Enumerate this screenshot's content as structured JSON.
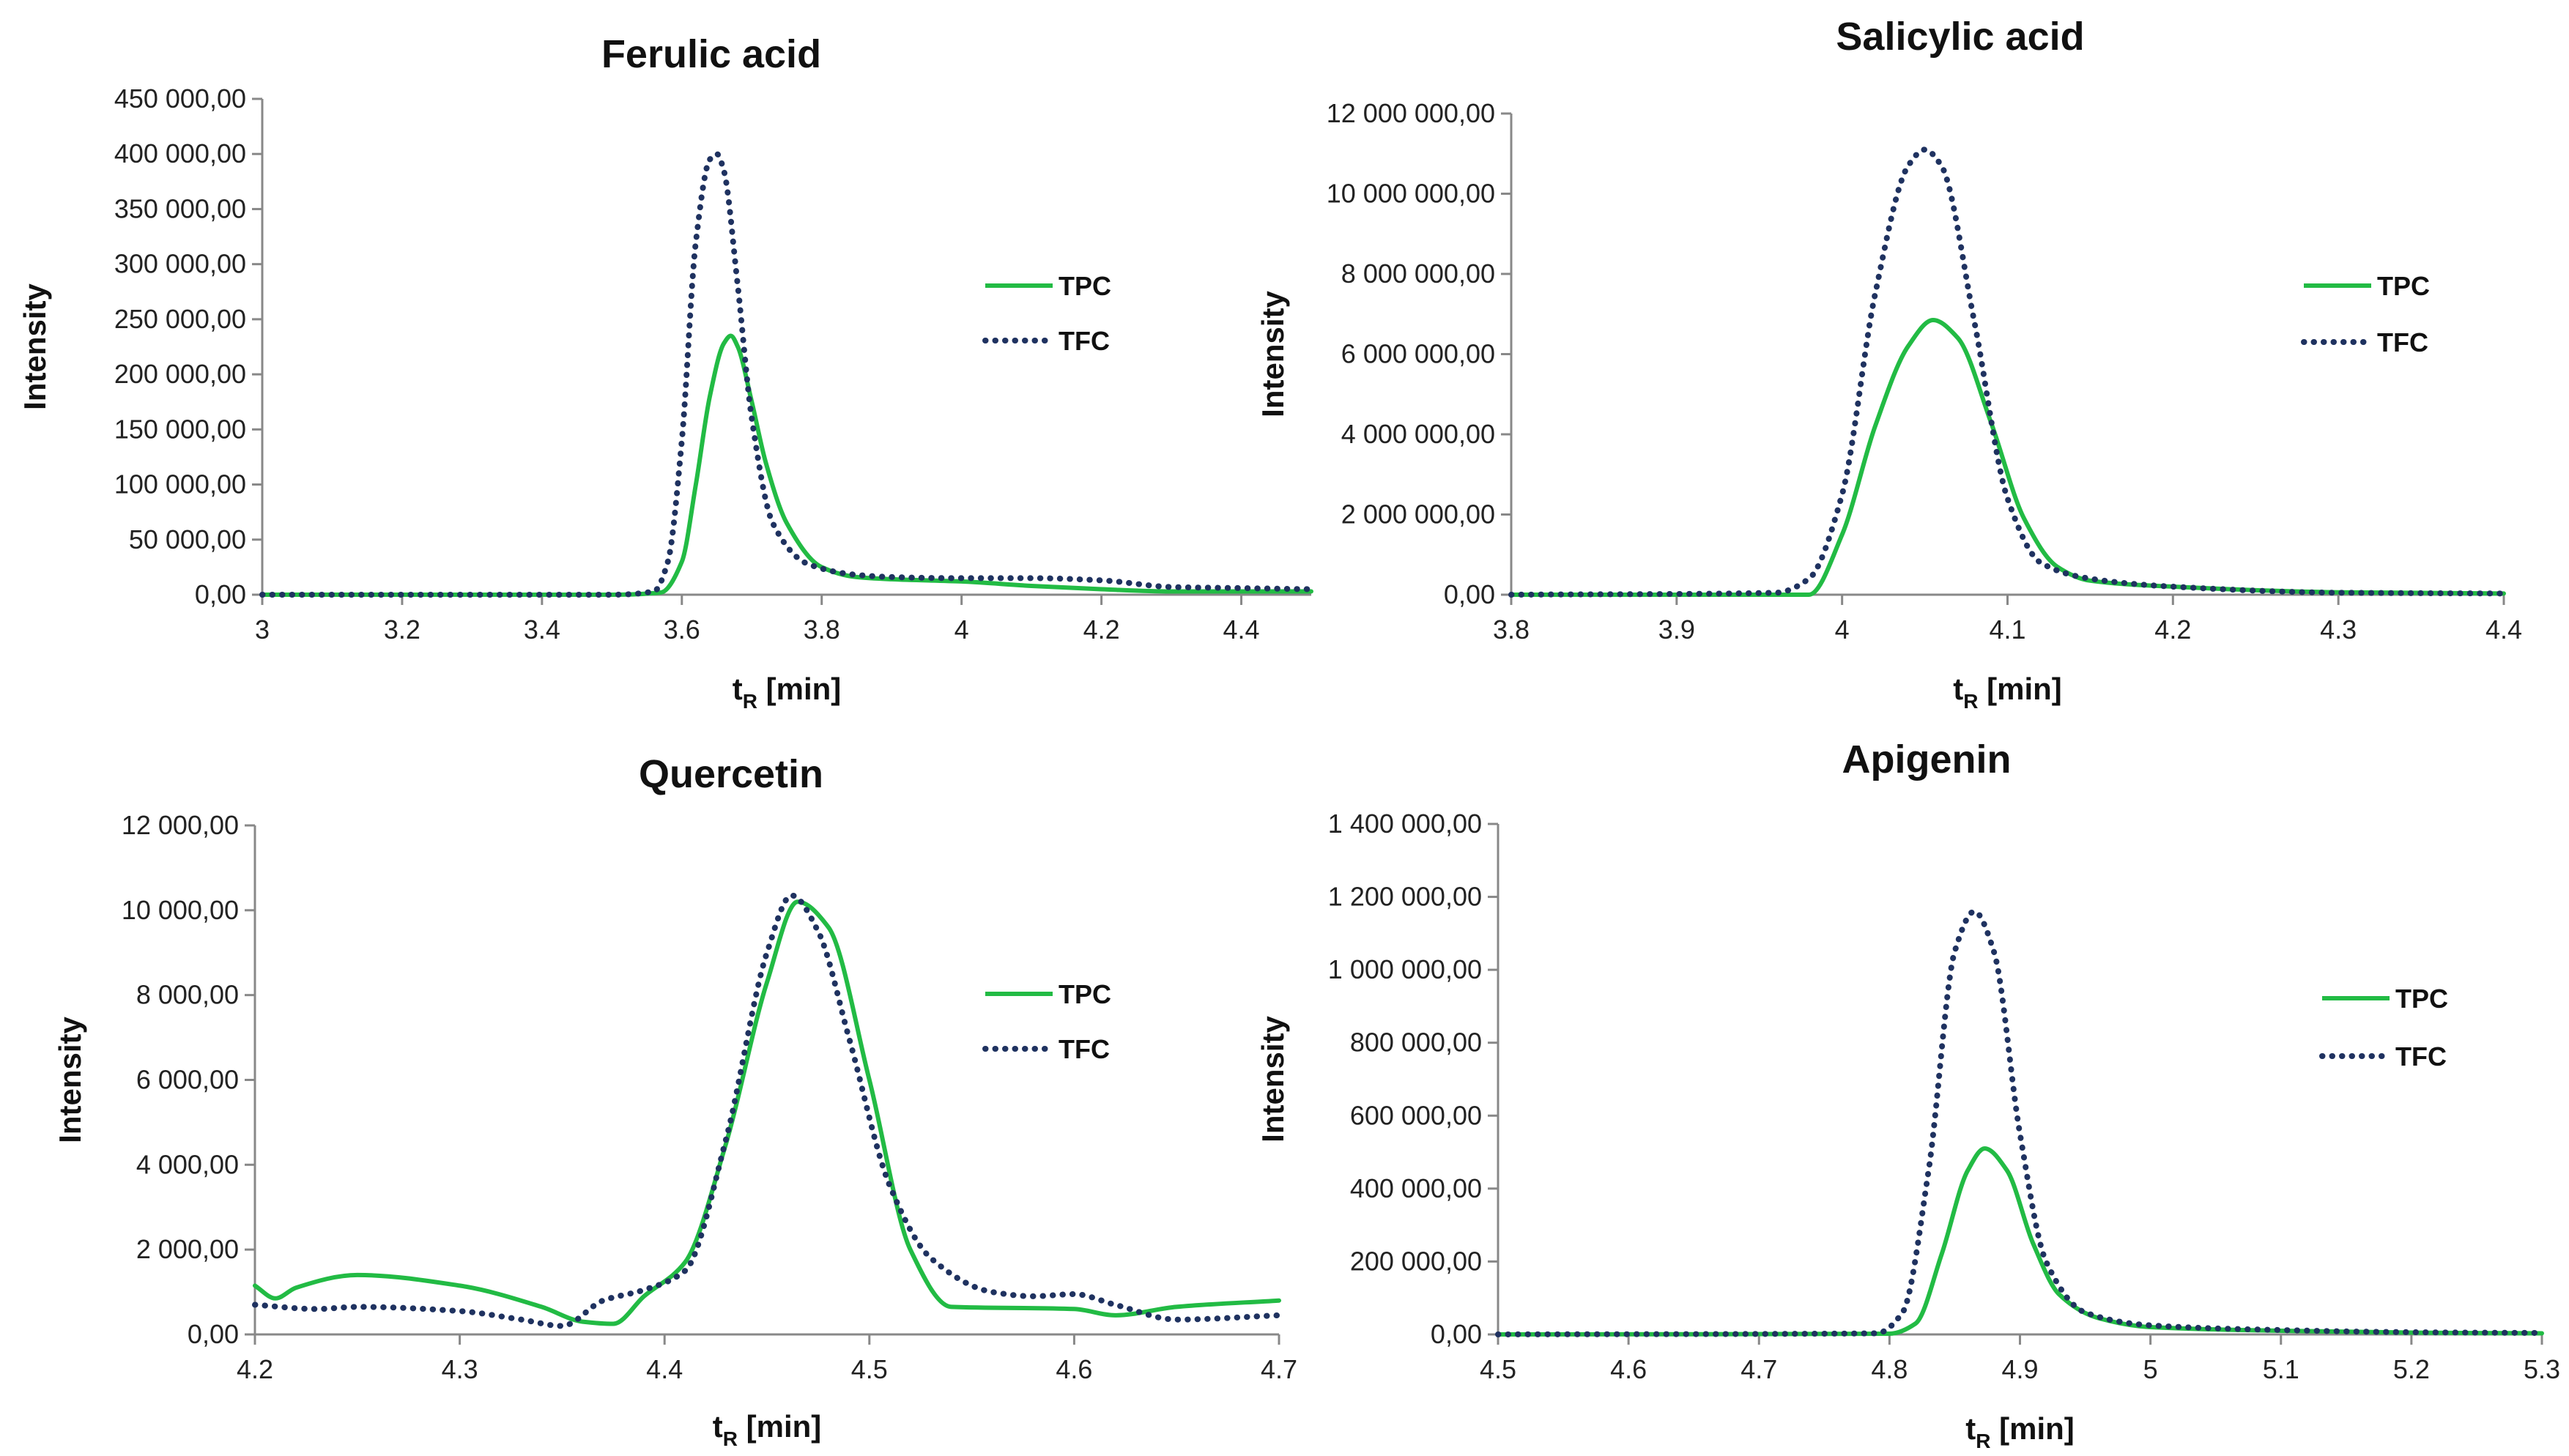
{
  "figure": {
    "description_colors": {
      "tpc": "#22bb44",
      "tfc": "#1f3260"
    }
  },
  "chart_data": [
    {
      "id": "ferulic",
      "type": "line",
      "title": "Ferulic acid",
      "xlabel": "t",
      "xlabel_sub": "R",
      "xlabel_unit": " [min]",
      "ylabel": "Intensity",
      "xlim": [
        3,
        4.5
      ],
      "ylim": [
        0,
        450000
      ],
      "xticks": [
        3,
        3.2,
        3.4,
        3.6,
        3.8,
        4,
        4.2,
        4.4
      ],
      "xtick_labels": [
        "3",
        "3.2",
        "3.4",
        "3.6",
        "3.8",
        "4",
        "4.2",
        "4.4"
      ],
      "yticks": [
        0,
        50000,
        100000,
        150000,
        200000,
        250000,
        300000,
        350000,
        400000,
        450000
      ],
      "ytick_labels": [
        "0,00",
        "50 000,00",
        "100 000,00",
        "150 000,00",
        "200 000,00",
        "250 000,00",
        "300 000,00",
        "350 000,00",
        "400 000,00",
        "450 000,00"
      ],
      "legend": [
        "TPC",
        "TFC"
      ],
      "series": [
        {
          "name": "TPC",
          "color": "#22bb44",
          "style": "solid",
          "x": [
            3.0,
            3.5,
            3.57,
            3.6,
            3.62,
            3.64,
            3.66,
            3.67,
            3.68,
            3.7,
            3.72,
            3.75,
            3.8,
            3.85,
            3.9,
            4.0,
            4.1,
            4.2,
            4.3,
            4.4,
            4.5
          ],
          "y": [
            0,
            0,
            2000,
            30000,
            100000,
            180000,
            228000,
            235000,
            225000,
            175000,
            120000,
            65000,
            25000,
            16000,
            14000,
            12000,
            8000,
            5000,
            3000,
            3000,
            3000
          ]
        },
        {
          "name": "TFC",
          "color": "#1f3260",
          "style": "dotted",
          "x": [
            3.0,
            3.5,
            3.56,
            3.58,
            3.6,
            3.62,
            3.64,
            3.65,
            3.66,
            3.68,
            3.7,
            3.73,
            3.78,
            3.85,
            3.9,
            4.0,
            4.1,
            4.2,
            4.3,
            4.4,
            4.5
          ],
          "y": [
            0,
            0,
            3000,
            30000,
            140000,
            320000,
            395000,
            400000,
            385000,
            280000,
            160000,
            65000,
            28000,
            18000,
            16000,
            15000,
            15000,
            13000,
            7000,
            6000,
            5000
          ]
        }
      ]
    },
    {
      "id": "salicylic",
      "type": "line",
      "title": "Salicylic acid",
      "xlabel": "t",
      "xlabel_sub": "R",
      "xlabel_unit": " [min]",
      "ylabel": "Intensity",
      "xlim": [
        3.8,
        4.4
      ],
      "ylim": [
        0,
        12000000
      ],
      "xticks": [
        3.8,
        3.9,
        4.0,
        4.1,
        4.2,
        4.3,
        4.4
      ],
      "xtick_labels": [
        "3.8",
        "3.9",
        "4",
        "4.1",
        "4.2",
        "4.3",
        "4.4"
      ],
      "yticks": [
        0,
        2000000,
        4000000,
        6000000,
        8000000,
        10000000,
        12000000
      ],
      "ytick_labels": [
        "0,00",
        "2 000 000,00",
        "4 000 000,00",
        "6 000 000,00",
        "8 000 000,00",
        "10 000 000,00",
        "12 000 000,00"
      ],
      "legend": [
        "TPC",
        "TFC"
      ],
      "series": [
        {
          "name": "TPC",
          "color": "#22bb44",
          "style": "solid",
          "x": [
            3.8,
            3.98,
            4.0,
            4.02,
            4.04,
            4.055,
            4.07,
            4.09,
            4.11,
            4.13,
            4.15,
            4.2,
            4.3,
            4.4
          ],
          "y": [
            0,
            0,
            1500000,
            4200000,
            6200000,
            6850000,
            6400000,
            4300000,
            1900000,
            700000,
            350000,
            200000,
            60000,
            30000
          ]
        },
        {
          "name": "TFC",
          "color": "#1f3260",
          "style": "dotted",
          "x": [
            3.8,
            3.96,
            3.98,
            4.0,
            4.02,
            4.04,
            4.05,
            4.06,
            4.08,
            4.1,
            4.12,
            4.15,
            4.2,
            4.3,
            4.4
          ],
          "y": [
            0,
            50000,
            400000,
            2500000,
            7500000,
            10700000,
            11100000,
            10700000,
            6800000,
            2400000,
            800000,
            400000,
            200000,
            50000,
            30000
          ]
        }
      ]
    },
    {
      "id": "quercetin",
      "type": "line",
      "title": "Quercetin",
      "xlabel": "t",
      "xlabel_sub": "R",
      "xlabel_unit": " [min]",
      "ylabel": "Intensity",
      "xlim": [
        4.2,
        4.7
      ],
      "ylim": [
        0,
        12000
      ],
      "xticks": [
        4.2,
        4.3,
        4.4,
        4.5,
        4.6,
        4.7
      ],
      "xtick_labels": [
        "4.2",
        "4.3",
        "4.4",
        "4.5",
        "4.6",
        "4.7"
      ],
      "yticks": [
        0,
        2000,
        4000,
        6000,
        8000,
        10000,
        12000
      ],
      "ytick_labels": [
        "0,00",
        "2 000,00",
        "4 000,00",
        "6 000,00",
        "8 000,00",
        "10 000,00",
        "12 000,00"
      ],
      "legend": [
        "TPC",
        "TFC"
      ],
      "series": [
        {
          "name": "TPC",
          "color": "#22bb44",
          "style": "solid",
          "x": [
            4.2,
            4.21,
            4.22,
            4.25,
            4.3,
            4.34,
            4.36,
            4.375,
            4.39,
            4.41,
            4.43,
            4.45,
            4.465,
            4.48,
            4.5,
            4.52,
            4.54,
            4.6,
            4.62,
            4.65,
            4.7
          ],
          "y": [
            1150,
            850,
            1100,
            1400,
            1150,
            650,
            300,
            250,
            900,
            1700,
            4500,
            8300,
            10200,
            9600,
            6000,
            2000,
            650,
            600,
            450,
            650,
            800
          ]
        },
        {
          "name": "TFC",
          "color": "#1f3260",
          "style": "dotted",
          "x": [
            4.2,
            4.23,
            4.25,
            4.3,
            4.33,
            4.35,
            4.37,
            4.39,
            4.41,
            4.43,
            4.45,
            4.462,
            4.475,
            4.49,
            4.51,
            4.53,
            4.56,
            4.58,
            4.6,
            4.62,
            4.65,
            4.7
          ],
          "y": [
            700,
            600,
            650,
            550,
            350,
            200,
            800,
            1050,
            1500,
            4600,
            9000,
            10350,
            9500,
            7000,
            3500,
            1800,
            1000,
            900,
            950,
            700,
            350,
            450
          ]
        }
      ]
    },
    {
      "id": "apigenin",
      "type": "line",
      "title": "Apigenin",
      "xlabel": "t",
      "xlabel_sub": "R",
      "xlabel_unit": " [min]",
      "ylabel": "Intensity",
      "xlim": [
        4.5,
        5.3
      ],
      "ylim": [
        0,
        1400000
      ],
      "xticks": [
        4.5,
        4.6,
        4.7,
        4.8,
        4.9,
        5.0,
        5.1,
        5.2,
        5.3
      ],
      "xtick_labels": [
        "4.5",
        "4.6",
        "4.7",
        "4.8",
        "4.9",
        "5",
        "5.1",
        "5.2",
        "5.3"
      ],
      "yticks": [
        0,
        200000,
        400000,
        600000,
        800000,
        1000000,
        1200000,
        1400000
      ],
      "ytick_labels": [
        "0,00",
        "200 000,00",
        "400 000,00",
        "600 000,00",
        "800 000,00",
        "1 000 000,00",
        "1 200 000,00",
        "1 400 000,00"
      ],
      "legend": [
        "TPC",
        "TFC"
      ],
      "series": [
        {
          "name": "TPC",
          "color": "#22bb44",
          "style": "solid",
          "x": [
            4.5,
            4.8,
            4.82,
            4.84,
            4.86,
            4.873,
            4.89,
            4.91,
            4.93,
            4.96,
            5.0,
            5.1,
            5.2,
            5.3
          ],
          "y": [
            0,
            2000,
            30000,
            220000,
            450000,
            510000,
            450000,
            250000,
            110000,
            45000,
            20000,
            10000,
            5000,
            3000
          ]
        },
        {
          "name": "TFC",
          "color": "#1f3260",
          "style": "dotted",
          "x": [
            4.5,
            4.79,
            4.81,
            4.83,
            4.85,
            4.865,
            4.88,
            4.9,
            4.92,
            4.95,
            5.0,
            5.1,
            5.2,
            5.3
          ],
          "y": [
            0,
            3000,
            60000,
            450000,
            1050000,
            1160000,
            1050000,
            550000,
            200000,
            60000,
            25000,
            12000,
            6000,
            4000
          ]
        }
      ]
    }
  ]
}
